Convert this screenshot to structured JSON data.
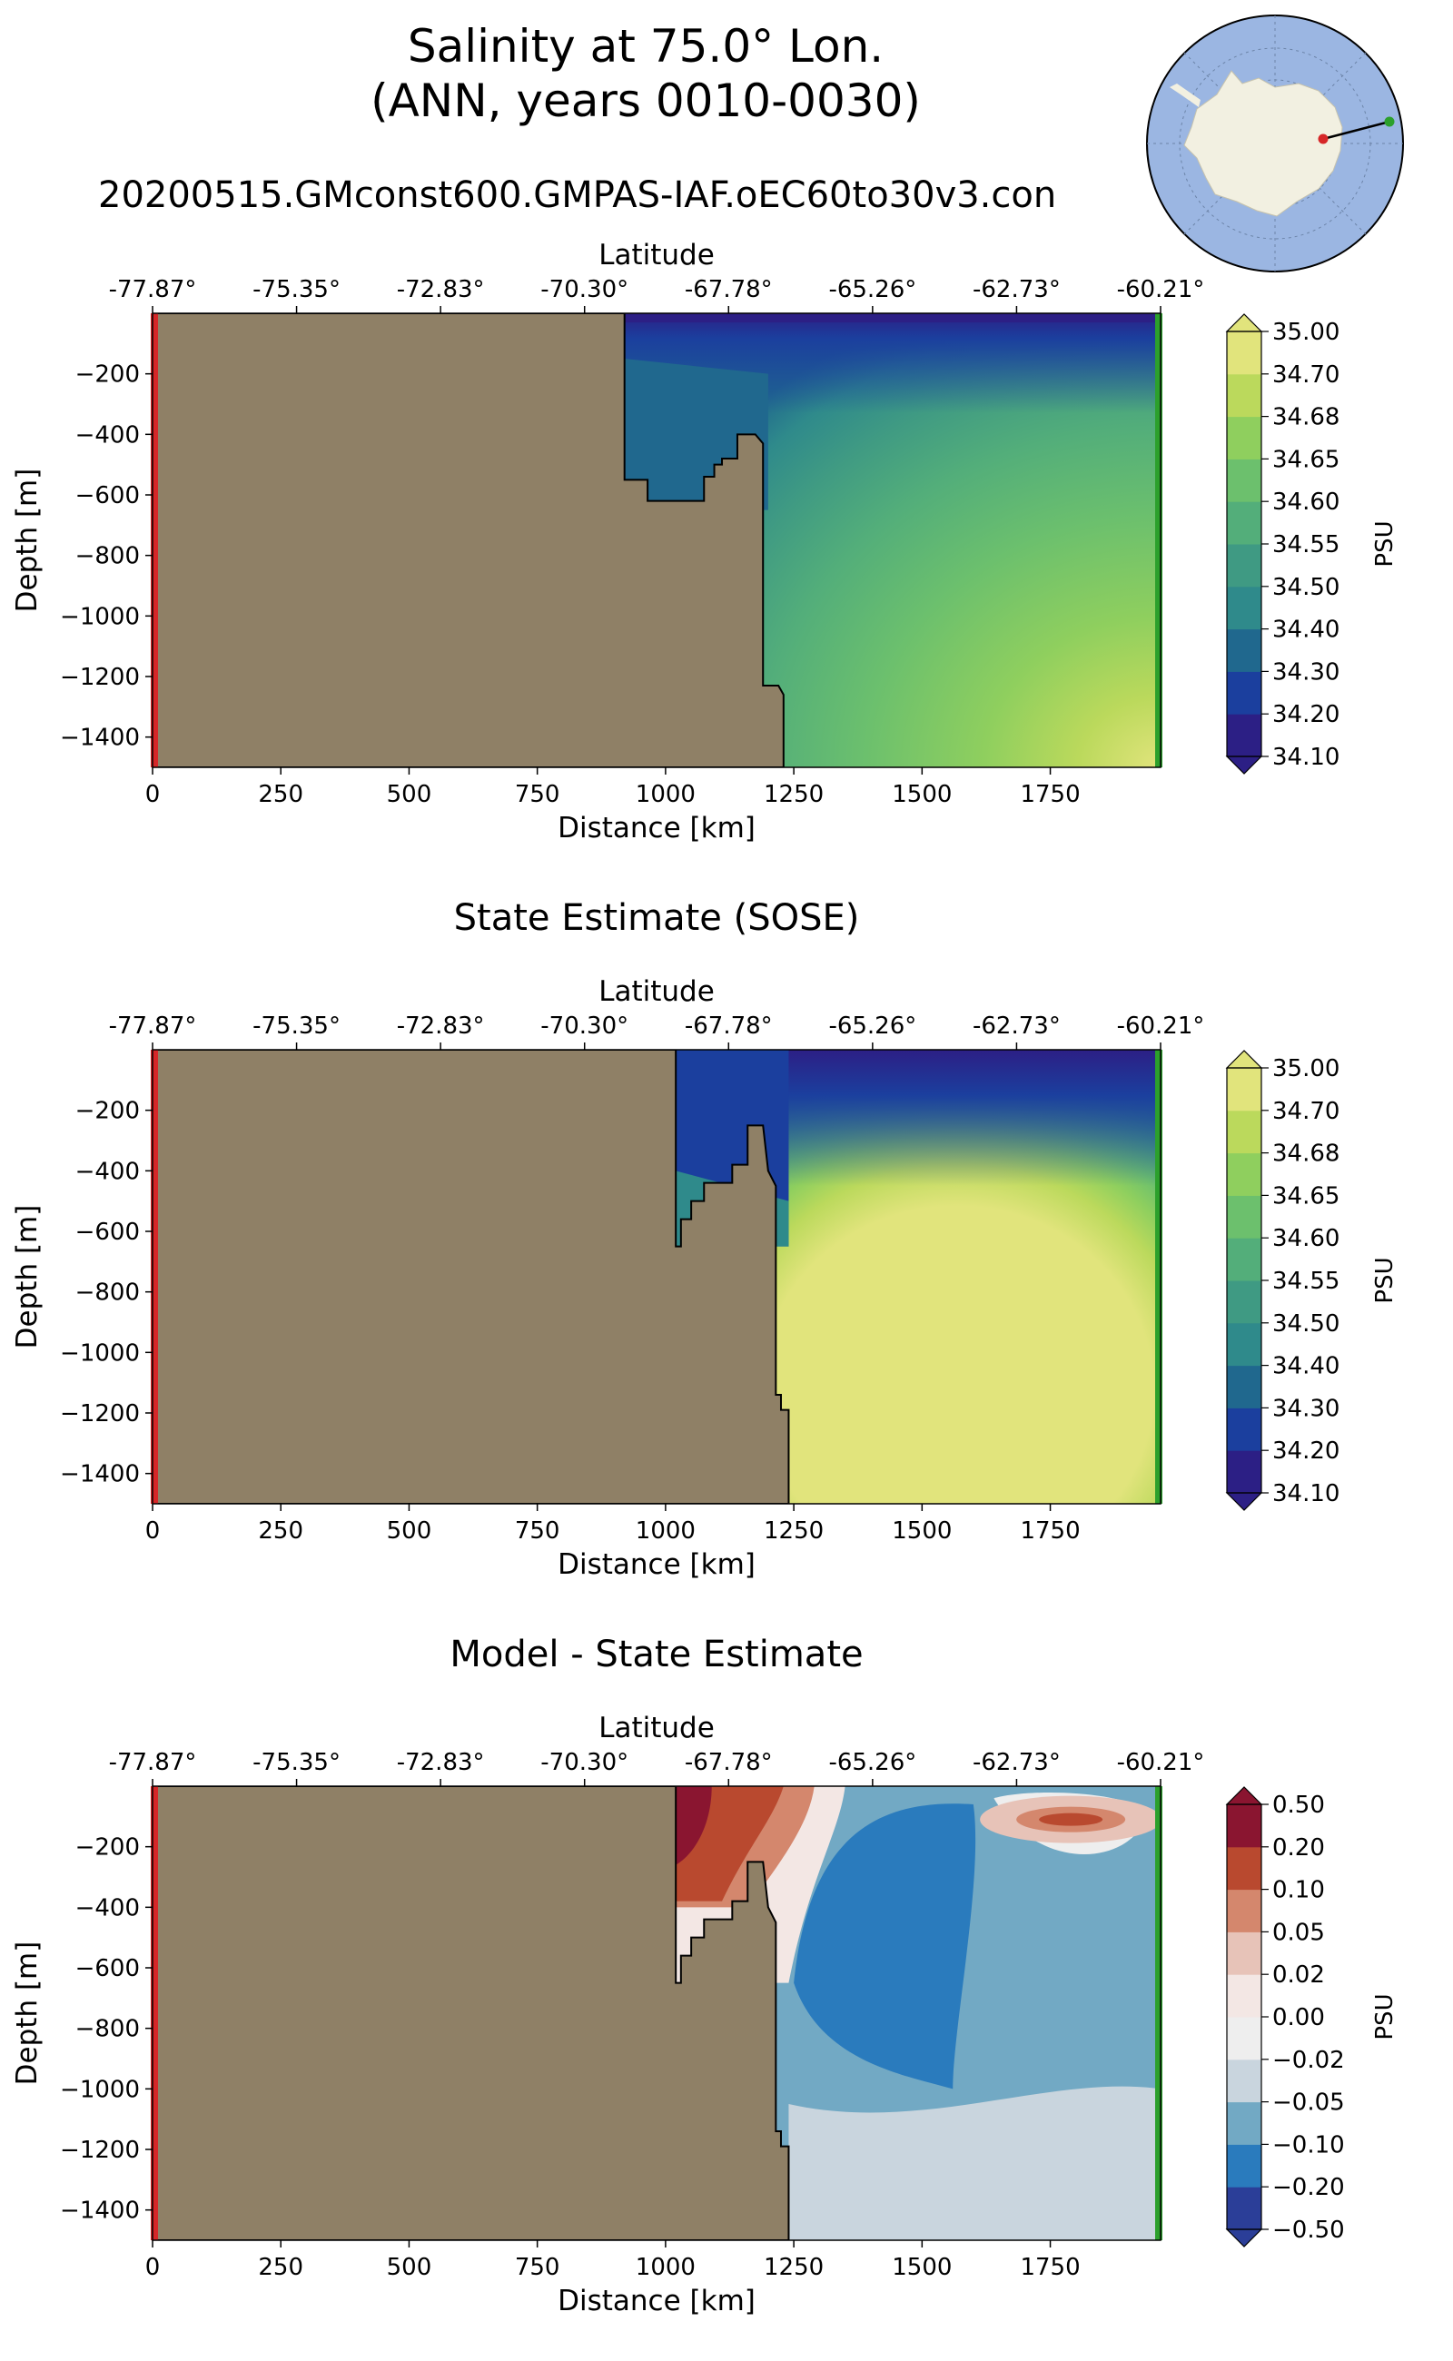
{
  "figure": {
    "title_line1": "Salinity at 75.0° Lon.",
    "title_line2": "(ANN, years 0010-0030)",
    "run_name": "20200515.GMconst600.GMPAS-IAF.oEC60to30v3.con"
  },
  "colors": {
    "land": "#8f8066",
    "section_start": "#d62728",
    "section_end": "#2ca02c",
    "ocean_map": "#9bb6e2",
    "antarctica": "#f2f0e1"
  },
  "chart_data": [
    {
      "type": "heatmap",
      "title": "",
      "xlabel": "Distance [km]",
      "ylabel": "Depth [m]",
      "top_xlabel": "Latitude",
      "xlim": [
        0,
        1965
      ],
      "ylim": [
        -1500,
        0
      ],
      "x_ticks": [
        0,
        250,
        500,
        750,
        1000,
        1250,
        1500,
        1750
      ],
      "y_ticks": [
        -200,
        -400,
        -600,
        -800,
        -1000,
        -1200,
        -1400
      ],
      "lat_ticks": [
        "-77.87°",
        "-75.35°",
        "-72.83°",
        "-70.30°",
        "-67.78°",
        "-65.26°",
        "-62.73°",
        "-60.21°"
      ],
      "colorbar_label": "PSU",
      "colorbar_levels": [
        "34.10",
        "34.20",
        "34.30",
        "34.40",
        "34.50",
        "34.55",
        "34.60",
        "34.65",
        "34.68",
        "34.70",
        "35.00"
      ],
      "colorbar_colors": [
        "#2c1f85",
        "#1b3f9e",
        "#20688e",
        "#2f8a8b",
        "#3f9a83",
        "#53ae7a",
        "#6cc06d",
        "#8fcf5e",
        "#bbd95c",
        "#e1e47c"
      ],
      "extend": "both",
      "shelf_edge_km": 920,
      "bathymetry": [
        [
          0,
          -1500
        ],
        [
          0,
          0
        ],
        [
          920,
          0
        ],
        [
          920,
          -550
        ],
        [
          965,
          -550
        ],
        [
          965,
          -620
        ],
        [
          1075,
          -620
        ],
        [
          1075,
          -540
        ],
        [
          1095,
          -540
        ],
        [
          1095,
          -500
        ],
        [
          1110,
          -500
        ],
        [
          1110,
          -480
        ],
        [
          1140,
          -480
        ],
        [
          1140,
          -400
        ],
        [
          1175,
          -400
        ],
        [
          1190,
          -430
        ],
        [
          1190,
          -1230
        ],
        [
          1220,
          -1230
        ],
        [
          1230,
          -1260
        ],
        [
          1230,
          -1500
        ]
      ]
    },
    {
      "type": "heatmap",
      "title": "State Estimate (SOSE)",
      "xlabel": "Distance [km]",
      "ylabel": "Depth [m]",
      "top_xlabel": "Latitude",
      "xlim": [
        0,
        1965
      ],
      "ylim": [
        -1500,
        0
      ],
      "x_ticks": [
        0,
        250,
        500,
        750,
        1000,
        1250,
        1500,
        1750
      ],
      "y_ticks": [
        -200,
        -400,
        -600,
        -800,
        -1000,
        -1200,
        -1400
      ],
      "lat_ticks": [
        "-77.87°",
        "-75.35°",
        "-72.83°",
        "-70.30°",
        "-67.78°",
        "-65.26°",
        "-62.73°",
        "-60.21°"
      ],
      "colorbar_label": "PSU",
      "colorbar_levels": [
        "34.10",
        "34.20",
        "34.30",
        "34.40",
        "34.50",
        "34.55",
        "34.60",
        "34.65",
        "34.68",
        "34.70",
        "35.00"
      ],
      "colorbar_colors": [
        "#2c1f85",
        "#1b3f9e",
        "#20688e",
        "#2f8a8b",
        "#3f9a83",
        "#53ae7a",
        "#6cc06d",
        "#8fcf5e",
        "#bbd95c",
        "#e1e47c"
      ],
      "extend": "both",
      "shelf_edge_km": 1020,
      "bathymetry": [
        [
          0,
          -1500
        ],
        [
          0,
          0
        ],
        [
          1020,
          0
        ],
        [
          1020,
          -650
        ],
        [
          1030,
          -650
        ],
        [
          1030,
          -560
        ],
        [
          1050,
          -560
        ],
        [
          1050,
          -500
        ],
        [
          1075,
          -500
        ],
        [
          1075,
          -440
        ],
        [
          1130,
          -440
        ],
        [
          1130,
          -380
        ],
        [
          1160,
          -380
        ],
        [
          1160,
          -250
        ],
        [
          1190,
          -250
        ],
        [
          1200,
          -400
        ],
        [
          1215,
          -450
        ],
        [
          1215,
          -1140
        ],
        [
          1225,
          -1140
        ],
        [
          1225,
          -1190
        ],
        [
          1240,
          -1190
        ],
        [
          1240,
          -1500
        ]
      ]
    },
    {
      "type": "heatmap",
      "title": "Model - State Estimate",
      "xlabel": "Distance [km]",
      "ylabel": "Depth [m]",
      "top_xlabel": "Latitude",
      "xlim": [
        0,
        1965
      ],
      "ylim": [
        -1500,
        0
      ],
      "x_ticks": [
        0,
        250,
        500,
        750,
        1000,
        1250,
        1500,
        1750
      ],
      "y_ticks": [
        -200,
        -400,
        -600,
        -800,
        -1000,
        -1200,
        -1400
      ],
      "lat_ticks": [
        "-77.87°",
        "-75.35°",
        "-72.83°",
        "-70.30°",
        "-67.78°",
        "-65.26°",
        "-62.73°",
        "-60.21°"
      ],
      "colorbar_label": "PSU",
      "colorbar_levels": [
        "−0.50",
        "−0.20",
        "−0.10",
        "−0.05",
        "−0.02",
        "0.00",
        "0.02",
        "0.05",
        "0.10",
        "0.20",
        "0.50"
      ],
      "colorbar_colors": [
        "#2b3e98",
        "#2a7bbd",
        "#72a9c4",
        "#c9d5de",
        "#eeeeee",
        "#f3e7e4",
        "#e7c3b8",
        "#d4876d",
        "#b9492f",
        "#8a1530"
      ],
      "extend": "both",
      "shelf_edge_km": 1020,
      "bathymetry": [
        [
          0,
          -1500
        ],
        [
          0,
          0
        ],
        [
          1020,
          0
        ],
        [
          1020,
          -650
        ],
        [
          1030,
          -650
        ],
        [
          1030,
          -560
        ],
        [
          1050,
          -560
        ],
        [
          1050,
          -500
        ],
        [
          1075,
          -500
        ],
        [
          1075,
          -440
        ],
        [
          1130,
          -440
        ],
        [
          1130,
          -380
        ],
        [
          1160,
          -380
        ],
        [
          1160,
          -250
        ],
        [
          1190,
          -250
        ],
        [
          1200,
          -400
        ],
        [
          1215,
          -450
        ],
        [
          1215,
          -1140
        ],
        [
          1225,
          -1140
        ],
        [
          1225,
          -1190
        ],
        [
          1240,
          -1190
        ],
        [
          1240,
          -1500
        ]
      ]
    }
  ]
}
